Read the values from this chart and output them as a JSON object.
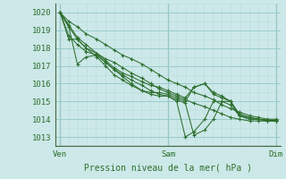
{
  "bg_color": "#cce8e8",
  "grid_major_color": "#99cccc",
  "grid_minor_color": "#bbdddd",
  "line_color": "#2d6e2d",
  "marker_color": "#2d6e2d",
  "ylabel_ticks": [
    1013,
    1014,
    1015,
    1016,
    1017,
    1018,
    1019,
    1020
  ],
  "ymin": 1012.5,
  "ymax": 1020.5,
  "xlabel": "Pression niveau de la mer( hPa )",
  "xtick_labels": [
    "Ven",
    "Sam",
    "Dim"
  ],
  "xtick_positions": [
    0.0,
    0.5,
    1.0
  ],
  "xmin": -0.02,
  "xmax": 1.02,
  "label_fontsize": 7,
  "tick_fontsize": 6.5,
  "series": [
    [
      [
        0.0,
        1020.0
      ],
      [
        0.04,
        1019.5
      ],
      [
        0.08,
        1019.2
      ],
      [
        0.12,
        1018.8
      ],
      [
        0.17,
        1018.5
      ],
      [
        0.21,
        1018.2
      ],
      [
        0.25,
        1017.9
      ],
      [
        0.29,
        1017.6
      ],
      [
        0.33,
        1017.4
      ],
      [
        0.38,
        1017.1
      ],
      [
        0.42,
        1016.8
      ],
      [
        0.46,
        1016.5
      ],
      [
        0.5,
        1016.2
      ],
      [
        0.54,
        1016.0
      ],
      [
        0.58,
        1015.8
      ],
      [
        0.62,
        1015.5
      ],
      [
        0.67,
        1015.3
      ],
      [
        0.71,
        1015.1
      ],
      [
        0.75,
        1014.8
      ],
      [
        0.79,
        1014.6
      ],
      [
        0.83,
        1014.4
      ],
      [
        0.88,
        1014.2
      ],
      [
        0.92,
        1014.1
      ],
      [
        0.96,
        1014.0
      ],
      [
        1.0,
        1014.0
      ]
    ],
    [
      [
        0.0,
        1020.0
      ],
      [
        0.04,
        1019.3
      ],
      [
        0.08,
        1018.6
      ],
      [
        0.12,
        1018.2
      ],
      [
        0.17,
        1017.7
      ],
      [
        0.21,
        1017.4
      ],
      [
        0.25,
        1017.2
      ],
      [
        0.29,
        1016.9
      ],
      [
        0.33,
        1016.6
      ],
      [
        0.38,
        1016.3
      ],
      [
        0.42,
        1016.0
      ],
      [
        0.46,
        1015.7
      ],
      [
        0.5,
        1015.5
      ],
      [
        0.54,
        1015.3
      ],
      [
        0.58,
        1015.1
      ],
      [
        0.62,
        1014.9
      ],
      [
        0.67,
        1014.7
      ],
      [
        0.71,
        1014.5
      ],
      [
        0.75,
        1014.3
      ],
      [
        0.79,
        1014.1
      ],
      [
        0.83,
        1014.0
      ],
      [
        0.88,
        1013.9
      ],
      [
        0.92,
        1013.9
      ],
      [
        0.96,
        1013.9
      ],
      [
        1.0,
        1013.9
      ]
    ],
    [
      [
        0.0,
        1020.0
      ],
      [
        0.04,
        1019.2
      ],
      [
        0.08,
        1018.5
      ],
      [
        0.12,
        1018.0
      ],
      [
        0.17,
        1017.5
      ],
      [
        0.21,
        1017.0
      ],
      [
        0.25,
        1016.5
      ],
      [
        0.29,
        1016.2
      ],
      [
        0.33,
        1015.9
      ],
      [
        0.38,
        1015.6
      ],
      [
        0.42,
        1015.4
      ],
      [
        0.46,
        1015.3
      ],
      [
        0.5,
        1015.3
      ],
      [
        0.54,
        1015.1
      ],
      [
        0.58,
        1014.9
      ],
      [
        0.62,
        1013.1
      ],
      [
        0.67,
        1013.4
      ],
      [
        0.71,
        1014.0
      ],
      [
        0.75,
        1015.0
      ],
      [
        0.79,
        1015.0
      ],
      [
        0.83,
        1014.2
      ],
      [
        0.88,
        1014.0
      ],
      [
        0.92,
        1014.0
      ],
      [
        0.96,
        1013.95
      ],
      [
        1.0,
        1013.9
      ]
    ],
    [
      [
        0.0,
        1020.0
      ],
      [
        0.04,
        1018.7
      ],
      [
        0.08,
        1018.2
      ],
      [
        0.12,
        1017.8
      ],
      [
        0.17,
        1017.6
      ],
      [
        0.21,
        1017.2
      ],
      [
        0.25,
        1016.8
      ],
      [
        0.29,
        1016.4
      ],
      [
        0.33,
        1016.0
      ],
      [
        0.38,
        1015.6
      ],
      [
        0.42,
        1015.5
      ],
      [
        0.46,
        1015.5
      ],
      [
        0.5,
        1015.4
      ],
      [
        0.54,
        1015.2
      ],
      [
        0.58,
        1015.0
      ],
      [
        0.62,
        1015.8
      ],
      [
        0.67,
        1016.0
      ],
      [
        0.71,
        1015.5
      ],
      [
        0.75,
        1015.3
      ],
      [
        0.79,
        1015.0
      ],
      [
        0.83,
        1014.2
      ],
      [
        0.88,
        1014.1
      ],
      [
        0.92,
        1014.0
      ],
      [
        0.96,
        1013.9
      ],
      [
        1.0,
        1013.9
      ]
    ],
    [
      [
        0.0,
        1020.0
      ],
      [
        0.04,
        1018.5
      ],
      [
        0.08,
        1018.5
      ],
      [
        0.12,
        1018.0
      ],
      [
        0.17,
        1017.7
      ],
      [
        0.21,
        1017.3
      ],
      [
        0.25,
        1016.9
      ],
      [
        0.29,
        1016.6
      ],
      [
        0.33,
        1016.4
      ],
      [
        0.38,
        1016.1
      ],
      [
        0.42,
        1015.9
      ],
      [
        0.46,
        1015.8
      ],
      [
        0.5,
        1015.6
      ],
      [
        0.54,
        1015.4
      ],
      [
        0.58,
        1015.2
      ],
      [
        0.62,
        1015.8
      ],
      [
        0.67,
        1016.0
      ],
      [
        0.71,
        1015.4
      ],
      [
        0.75,
        1015.2
      ],
      [
        0.79,
        1015.0
      ],
      [
        0.83,
        1014.3
      ],
      [
        0.88,
        1014.1
      ],
      [
        0.92,
        1014.0
      ],
      [
        0.96,
        1013.95
      ],
      [
        1.0,
        1013.95
      ]
    ],
    [
      [
        0.0,
        1020.0
      ],
      [
        0.04,
        1019.2
      ],
      [
        0.08,
        1017.1
      ],
      [
        0.12,
        1017.5
      ],
      [
        0.17,
        1017.6
      ],
      [
        0.21,
        1017.2
      ],
      [
        0.25,
        1016.8
      ],
      [
        0.29,
        1016.5
      ],
      [
        0.33,
        1016.2
      ],
      [
        0.38,
        1015.9
      ],
      [
        0.42,
        1015.6
      ],
      [
        0.46,
        1015.4
      ],
      [
        0.5,
        1015.3
      ],
      [
        0.54,
        1015.0
      ],
      [
        0.58,
        1013.0
      ],
      [
        0.62,
        1013.3
      ],
      [
        0.67,
        1014.0
      ],
      [
        0.71,
        1015.0
      ],
      [
        0.75,
        1015.0
      ],
      [
        0.79,
        1014.8
      ],
      [
        0.83,
        1014.2
      ],
      [
        0.88,
        1014.0
      ],
      [
        0.92,
        1014.0
      ],
      [
        0.96,
        1013.9
      ],
      [
        1.0,
        1013.9
      ]
    ]
  ]
}
